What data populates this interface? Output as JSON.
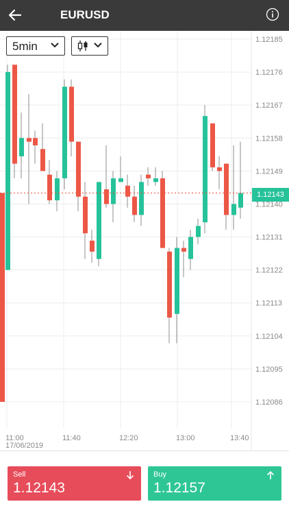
{
  "header": {
    "title": "EURUSD",
    "back_icon": "arrow-left-icon",
    "info_icon": "info-circle-icon"
  },
  "toolbar": {
    "timeframe": "5min",
    "chart_type_icon": "candlestick-icon"
  },
  "chart": {
    "price_ticks": [
      "1.12185",
      "1.12176",
      "1.12167",
      "1.12158",
      "1.12149",
      "1.12140",
      "1.12131",
      "1.12122",
      "1.12113",
      "1.12104",
      "1.12095",
      "1.12086"
    ],
    "time_ticks": [
      "11:00",
      "11:40",
      "12:20",
      "13:00",
      "13:40"
    ],
    "date_label": "17/06/2019",
    "current_price": "1.12143",
    "colors": {
      "up": "#26c29a",
      "down": "#ec5746",
      "grid": "#ececec",
      "current_line": "#ec5746"
    }
  },
  "trade": {
    "sell": {
      "label": "Sell",
      "price": "1.12143",
      "color": "#e74c5a",
      "icon": "arrow-down-icon"
    },
    "buy": {
      "label": "Buy",
      "price": "1.12157",
      "color": "#2fc696",
      "icon": "arrow-up-icon"
    }
  }
}
